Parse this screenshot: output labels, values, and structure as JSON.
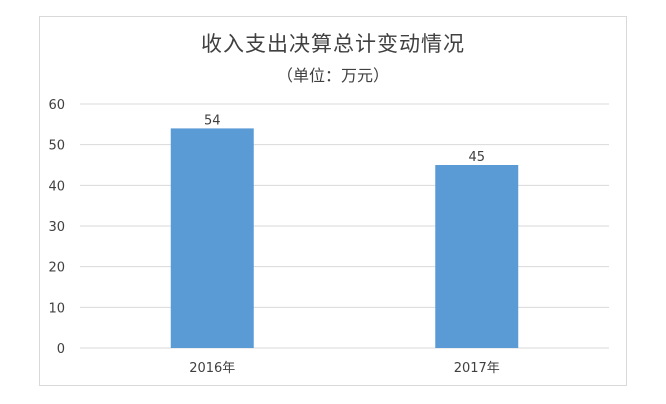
{
  "chart_data": {
    "type": "bar",
    "title": "收入支出决算总计变动情况",
    "subtitle": "（单位：万元）",
    "categories": [
      "2016年",
      "2017年"
    ],
    "values": [
      54,
      45
    ],
    "ylim": [
      0,
      60
    ],
    "yticks": [
      0,
      10,
      20,
      30,
      40,
      50,
      60
    ],
    "grid": true,
    "xlabel": "",
    "ylabel": "",
    "bar_color": "#5b9bd5",
    "grid_color": "#d9d9d9",
    "text_color": "#404040"
  }
}
